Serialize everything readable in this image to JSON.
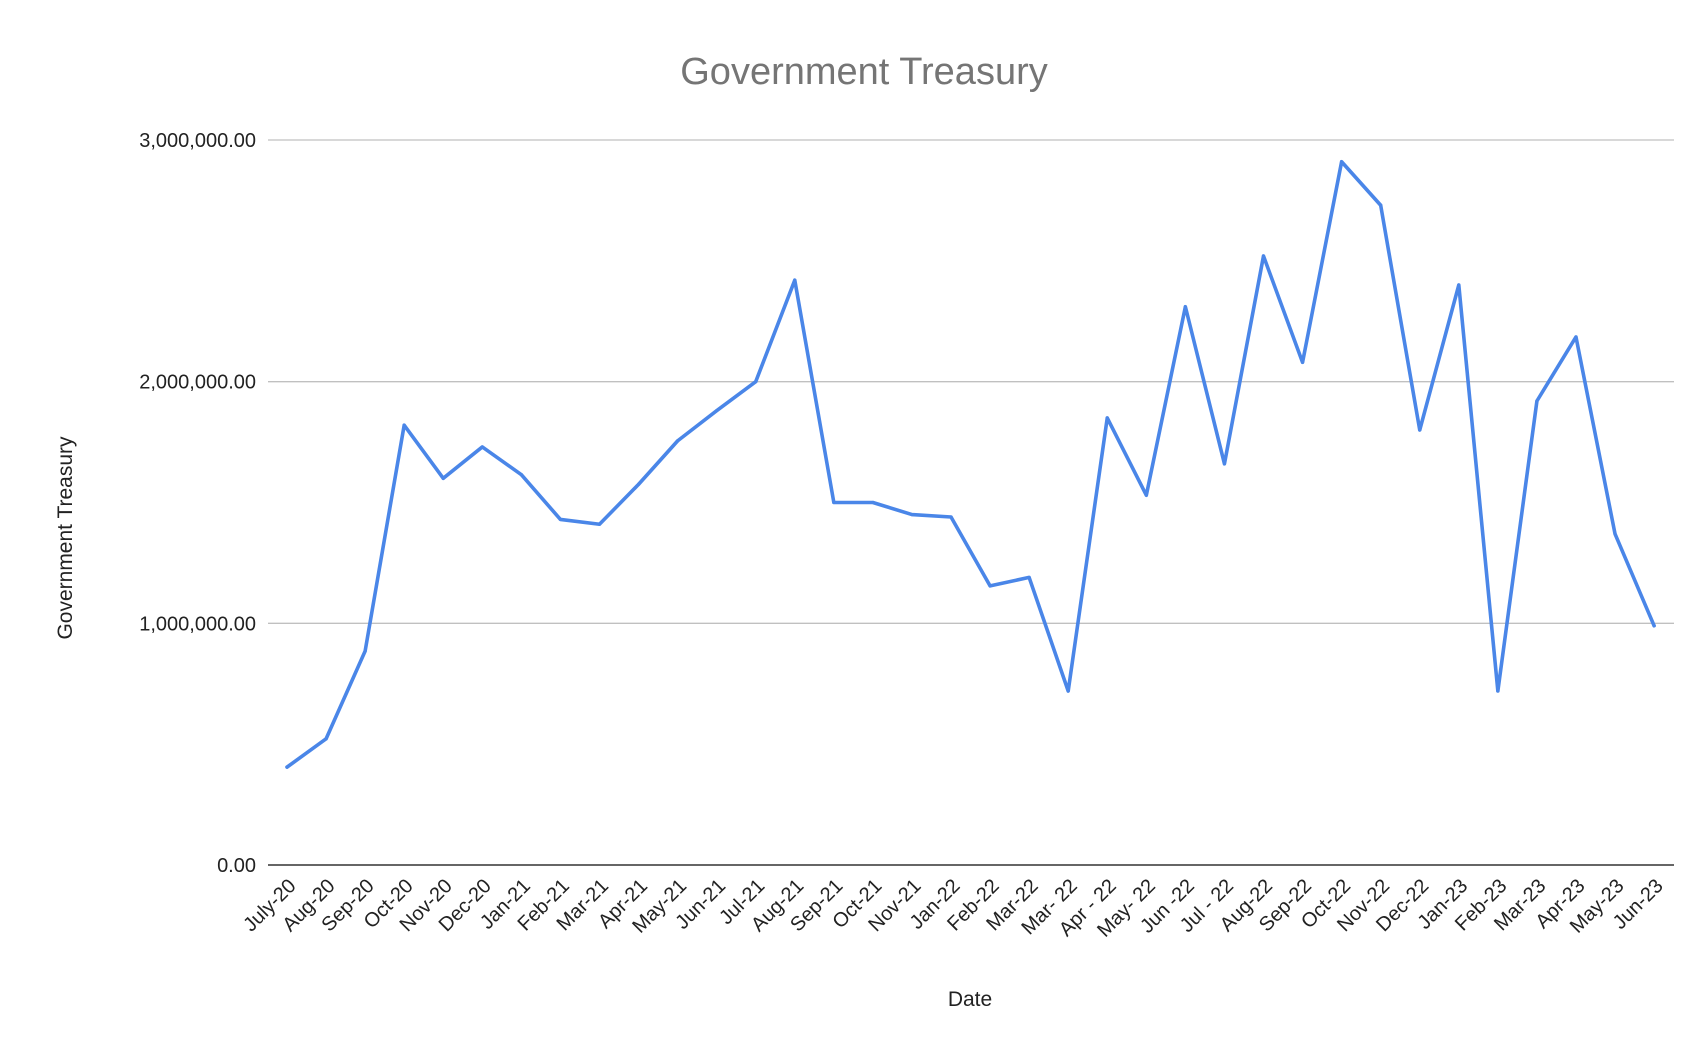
{
  "chart_data": {
    "type": "line",
    "title": "Government Treasury",
    "xlabel": "Date",
    "ylabel": "Government Treasury",
    "ylim": [
      0,
      3000000
    ],
    "yticks": [
      {
        "value": 0,
        "label": "0.00"
      },
      {
        "value": 1000000,
        "label": "1,000,000.00"
      },
      {
        "value": 2000000,
        "label": "2,000,000.00"
      },
      {
        "value": 3000000,
        "label": "3,000,000.00"
      }
    ],
    "grid": true,
    "legend": "none",
    "categories": [
      "July-20",
      "Aug-20",
      "Sep-20",
      "Oct-20",
      "Nov-20",
      "Dec-20",
      "Jan-21",
      "Feb-21",
      "Mar-21",
      "Apr-21",
      "May-21",
      "Jun-21",
      "Jul-21",
      "Aug-21",
      "Sep-21",
      "Oct-21",
      "Nov-21",
      "Jan-22",
      "Feb-22",
      "Mar-22",
      "Mar- 22",
      "Apr - 22",
      "May- 22",
      "Jun -22",
      "Jul - 22",
      "Aug-22",
      "Sep-22",
      "Oct-22",
      "Nov-22",
      "Dec-22",
      "Jan-23",
      "Feb-23",
      "Mar-23",
      "Apr-23",
      "May-23",
      "Jun-23"
    ],
    "series": [
      {
        "color": "#4a86e8",
        "values": [
          405000,
          522000,
          885000,
          1820000,
          1600000,
          1730000,
          1615000,
          1430000,
          1410000,
          1575000,
          1755000,
          1880000,
          2000000,
          2420000,
          1500000,
          1500000,
          1450000,
          1440000,
          1155000,
          1190000,
          720000,
          1850000,
          1530000,
          2310000,
          1660000,
          2520000,
          2080000,
          2910000,
          2730000,
          1800000,
          2400000,
          720000,
          1920000,
          2185000,
          1370000,
          990000
        ]
      }
    ]
  }
}
